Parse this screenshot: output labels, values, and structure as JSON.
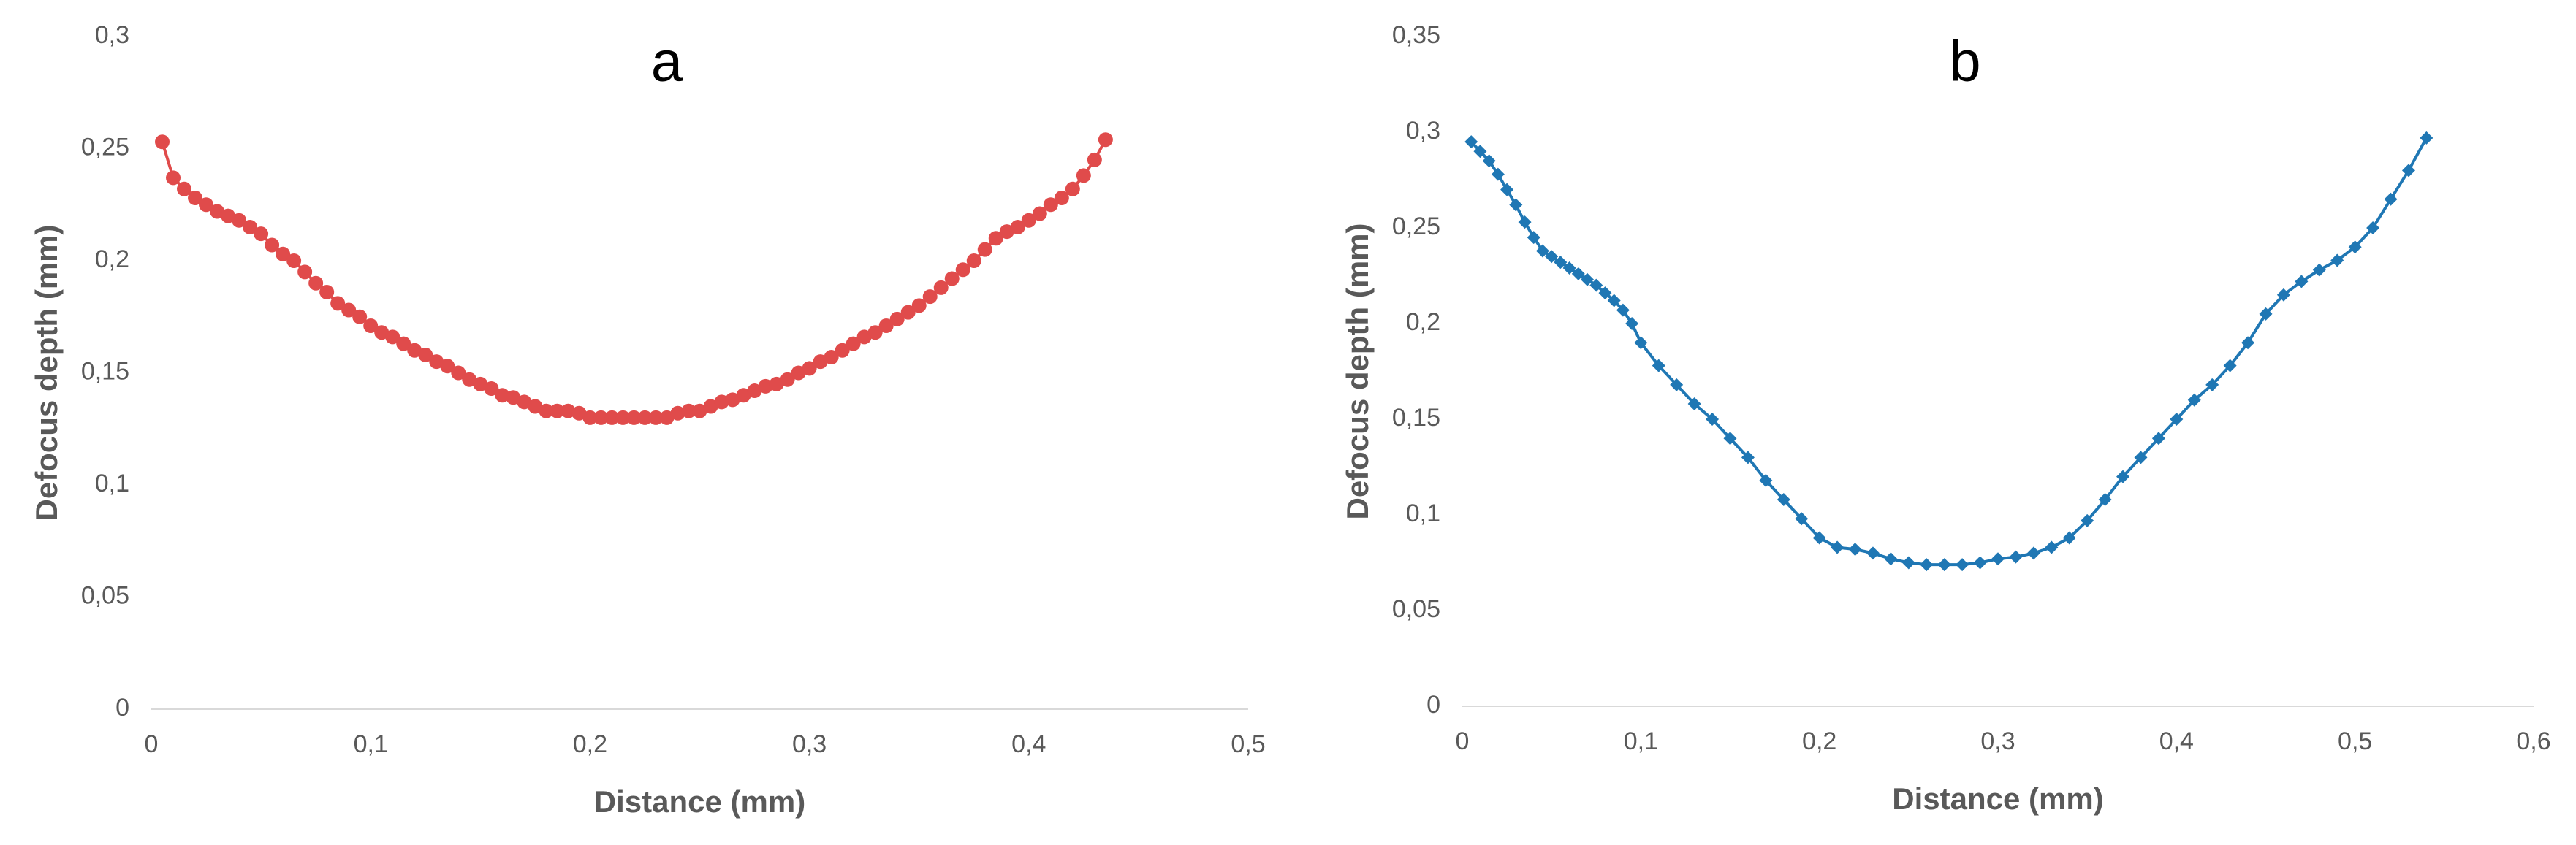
{
  "chart_data": [
    {
      "type": "line",
      "title": "a",
      "x_label": "Distance (mm)",
      "y_label": "Defocus depth (mm)",
      "marker": "circle",
      "xlim": [
        0,
        0.5
      ],
      "xticks": [
        0,
        {
          "value": 0.1,
          "label": "0,1"
        },
        {
          "value": 0.2,
          "label": "0,2"
        },
        {
          "value": 0.3,
          "label": "0,3"
        },
        {
          "value": 0.4,
          "label": "0,4"
        },
        {
          "value": 0.5,
          "label": "0,5"
        }
      ],
      "ylim": [
        0,
        0.3
      ],
      "yticks": [
        0,
        {
          "value": 0.05,
          "label": "0,05"
        },
        {
          "value": 0.1,
          "label": "0,1"
        },
        {
          "value": 0.15,
          "label": "0,15"
        },
        {
          "value": 0.2,
          "label": "0,2"
        },
        {
          "value": 0.25,
          "label": "0,25"
        },
        {
          "value": 0.3,
          "label": "0,3"
        }
      ],
      "x": [
        0.005,
        0.01,
        0.015,
        0.02,
        0.025,
        0.03,
        0.035,
        0.04,
        0.045,
        0.05,
        0.055,
        0.06,
        0.065,
        0.07,
        0.075,
        0.08,
        0.085,
        0.09,
        0.095,
        0.1,
        0.105,
        0.11,
        0.115,
        0.12,
        0.125,
        0.13,
        0.135,
        0.14,
        0.145,
        0.15,
        0.155,
        0.16,
        0.165,
        0.17,
        0.175,
        0.18,
        0.185,
        0.19,
        0.195,
        0.2,
        0.205,
        0.21,
        0.215,
        0.22,
        0.225,
        0.23,
        0.235,
        0.24,
        0.245,
        0.25,
        0.255,
        0.26,
        0.265,
        0.27,
        0.275,
        0.28,
        0.285,
        0.29,
        0.295,
        0.3,
        0.305,
        0.31,
        0.315,
        0.32,
        0.325,
        0.33,
        0.335,
        0.34,
        0.345,
        0.35,
        0.355,
        0.36,
        0.365,
        0.37,
        0.375,
        0.38,
        0.385,
        0.39,
        0.395,
        0.4,
        0.405,
        0.41,
        0.415,
        0.42,
        0.425,
        0.43,
        0.435
      ],
      "series": [
        {
          "color": "#e04b4b",
          "values": [
            0.253,
            0.237,
            0.232,
            0.228,
            0.225,
            0.222,
            0.22,
            0.218,
            0.215,
            0.212,
            0.207,
            0.203,
            0.2,
            0.195,
            0.19,
            0.186,
            0.181,
            0.178,
            0.175,
            0.171,
            0.168,
            0.166,
            0.163,
            0.16,
            0.158,
            0.155,
            0.153,
            0.15,
            0.147,
            0.145,
            0.143,
            0.14,
            0.139,
            0.137,
            0.135,
            0.133,
            0.133,
            0.133,
            0.132,
            0.13,
            0.13,
            0.13,
            0.13,
            0.13,
            0.13,
            0.13,
            0.13,
            0.132,
            0.133,
            0.133,
            0.135,
            0.137,
            0.138,
            0.14,
            0.142,
            0.144,
            0.145,
            0.147,
            0.15,
            0.152,
            0.155,
            0.157,
            0.16,
            0.163,
            0.166,
            0.168,
            0.171,
            0.174,
            0.177,
            0.18,
            0.184,
            0.188,
            0.192,
            0.196,
            0.2,
            0.205,
            0.21,
            0.213,
            0.215,
            0.218,
            0.221,
            0.225,
            0.228,
            0.232,
            0.238,
            0.245,
            0.254
          ]
        }
      ]
    },
    {
      "type": "line",
      "title": "b",
      "x_label": "Distance (mm)",
      "y_label": "Defocus depth (mm)",
      "marker": "diamond",
      "xlim": [
        0,
        0.6
      ],
      "xticks": [
        0,
        {
          "value": 0.1,
          "label": "0,1"
        },
        {
          "value": 0.2,
          "label": "0,2"
        },
        {
          "value": 0.3,
          "label": "0,3"
        },
        {
          "value": 0.4,
          "label": "0,4"
        },
        {
          "value": 0.5,
          "label": "0,5"
        },
        {
          "value": 0.6,
          "label": "0,6"
        }
      ],
      "ylim": [
        0,
        0.35
      ],
      "yticks": [
        0,
        {
          "value": 0.05,
          "label": "0,05"
        },
        {
          "value": 0.1,
          "label": "0,1"
        },
        {
          "value": 0.15,
          "label": "0,15"
        },
        {
          "value": 0.2,
          "label": "0,2"
        },
        {
          "value": 0.25,
          "label": "0,25"
        },
        {
          "value": 0.3,
          "label": "0,3"
        },
        {
          "value": 0.35,
          "label": "0,35"
        }
      ],
      "x": [
        0.005,
        0.01,
        0.015,
        0.02,
        0.025,
        0.03,
        0.035,
        0.04,
        0.045,
        0.05,
        0.055,
        0.06,
        0.065,
        0.07,
        0.075,
        0.08,
        0.085,
        0.09,
        0.095,
        0.1,
        0.11,
        0.12,
        0.13,
        0.14,
        0.15,
        0.16,
        0.17,
        0.18,
        0.19,
        0.2,
        0.21,
        0.22,
        0.23,
        0.24,
        0.25,
        0.26,
        0.27,
        0.28,
        0.29,
        0.3,
        0.31,
        0.32,
        0.33,
        0.34,
        0.35,
        0.36,
        0.37,
        0.38,
        0.39,
        0.4,
        0.41,
        0.42,
        0.43,
        0.44,
        0.45,
        0.46,
        0.47,
        0.48,
        0.49,
        0.5,
        0.51,
        0.52,
        0.53,
        0.54
      ],
      "series": [
        {
          "color": "#1f77b4",
          "values": [
            0.295,
            0.29,
            0.285,
            0.278,
            0.27,
            0.262,
            0.253,
            0.245,
            0.238,
            0.235,
            0.232,
            0.229,
            0.226,
            0.223,
            0.22,
            0.216,
            0.212,
            0.207,
            0.2,
            0.19,
            0.178,
            0.168,
            0.158,
            0.15,
            0.14,
            0.13,
            0.118,
            0.108,
            0.098,
            0.088,
            0.083,
            0.082,
            0.08,
            0.077,
            0.075,
            0.074,
            0.074,
            0.074,
            0.075,
            0.077,
            0.078,
            0.08,
            0.083,
            0.088,
            0.097,
            0.108,
            0.12,
            0.13,
            0.14,
            0.15,
            0.16,
            0.168,
            0.178,
            0.19,
            0.205,
            0.215,
            0.222,
            0.228,
            0.233,
            0.24,
            0.25,
            0.265,
            0.28,
            0.297
          ]
        }
      ]
    }
  ]
}
